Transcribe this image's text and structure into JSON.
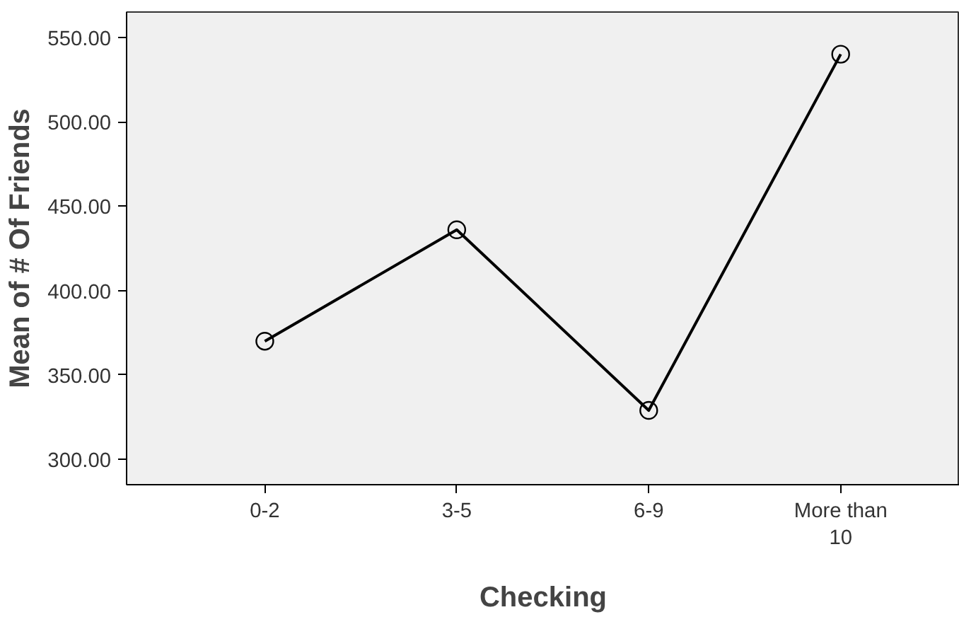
{
  "chart_data": {
    "type": "line",
    "xlabel": "Checking",
    "ylabel": "Mean of # Of Friends",
    "categories": [
      "0-2",
      "3-5",
      "6-9",
      "More than\n10"
    ],
    "values": [
      370,
      436,
      329,
      540
    ],
    "color": "#000000",
    "marker": "circle",
    "ylim": [
      285,
      565
    ],
    "yticks": [
      {
        "value": 300,
        "label": "300.00"
      },
      {
        "value": 350,
        "label": "350.00"
      },
      {
        "value": 400,
        "label": "400.00"
      },
      {
        "value": 450,
        "label": "450.00"
      },
      {
        "value": 500,
        "label": "500.00"
      },
      {
        "value": 550,
        "label": "550.00"
      }
    ],
    "grid": false
  }
}
